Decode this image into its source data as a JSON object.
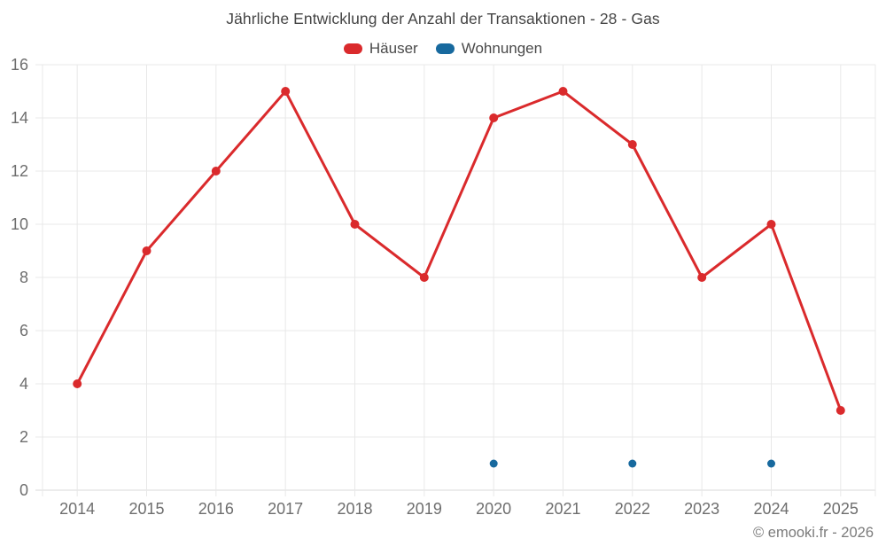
{
  "title": "Jährliche Entwicklung der Anzahl der Transaktionen - 28 - Gas",
  "footer_credit": "© emooki.fr - 2026",
  "legend": {
    "items": [
      {
        "label": "Häuser"
      },
      {
        "label": "Wohnungen"
      }
    ]
  },
  "chart_data": {
    "type": "line",
    "title": "Jährliche Entwicklung der Anzahl der Transaktionen - 28 - Gas",
    "categories": [
      "2014",
      "2015",
      "2016",
      "2017",
      "2018",
      "2019",
      "2020",
      "2021",
      "2022",
      "2023",
      "2024",
      "2025"
    ],
    "series": [
      {
        "name": "Häuser",
        "color": "#da2a2c",
        "marker_radius": 5,
        "line": true,
        "values": [
          4,
          9,
          12,
          15,
          10,
          8,
          14,
          15,
          13,
          8,
          10,
          3
        ]
      },
      {
        "name": "Wohnungen",
        "color": "#17699e",
        "marker_radius": 4.5,
        "line": true,
        "values": [
          null,
          null,
          null,
          null,
          null,
          null,
          1,
          null,
          1,
          null,
          1,
          null
        ]
      }
    ],
    "xlabel": "",
    "ylabel": "",
    "ylim": [
      0,
      16
    ],
    "ytick_step": 2,
    "grid": true,
    "legend_position": "top",
    "colors": {
      "grid_line": "#e8e8e8",
      "baseline": "#d9d9d9",
      "axis_label": "#6e6e6e",
      "title_text": "#454545",
      "legend_text": "#4a4a4a",
      "footer_text": "#7b7b7b"
    }
  }
}
